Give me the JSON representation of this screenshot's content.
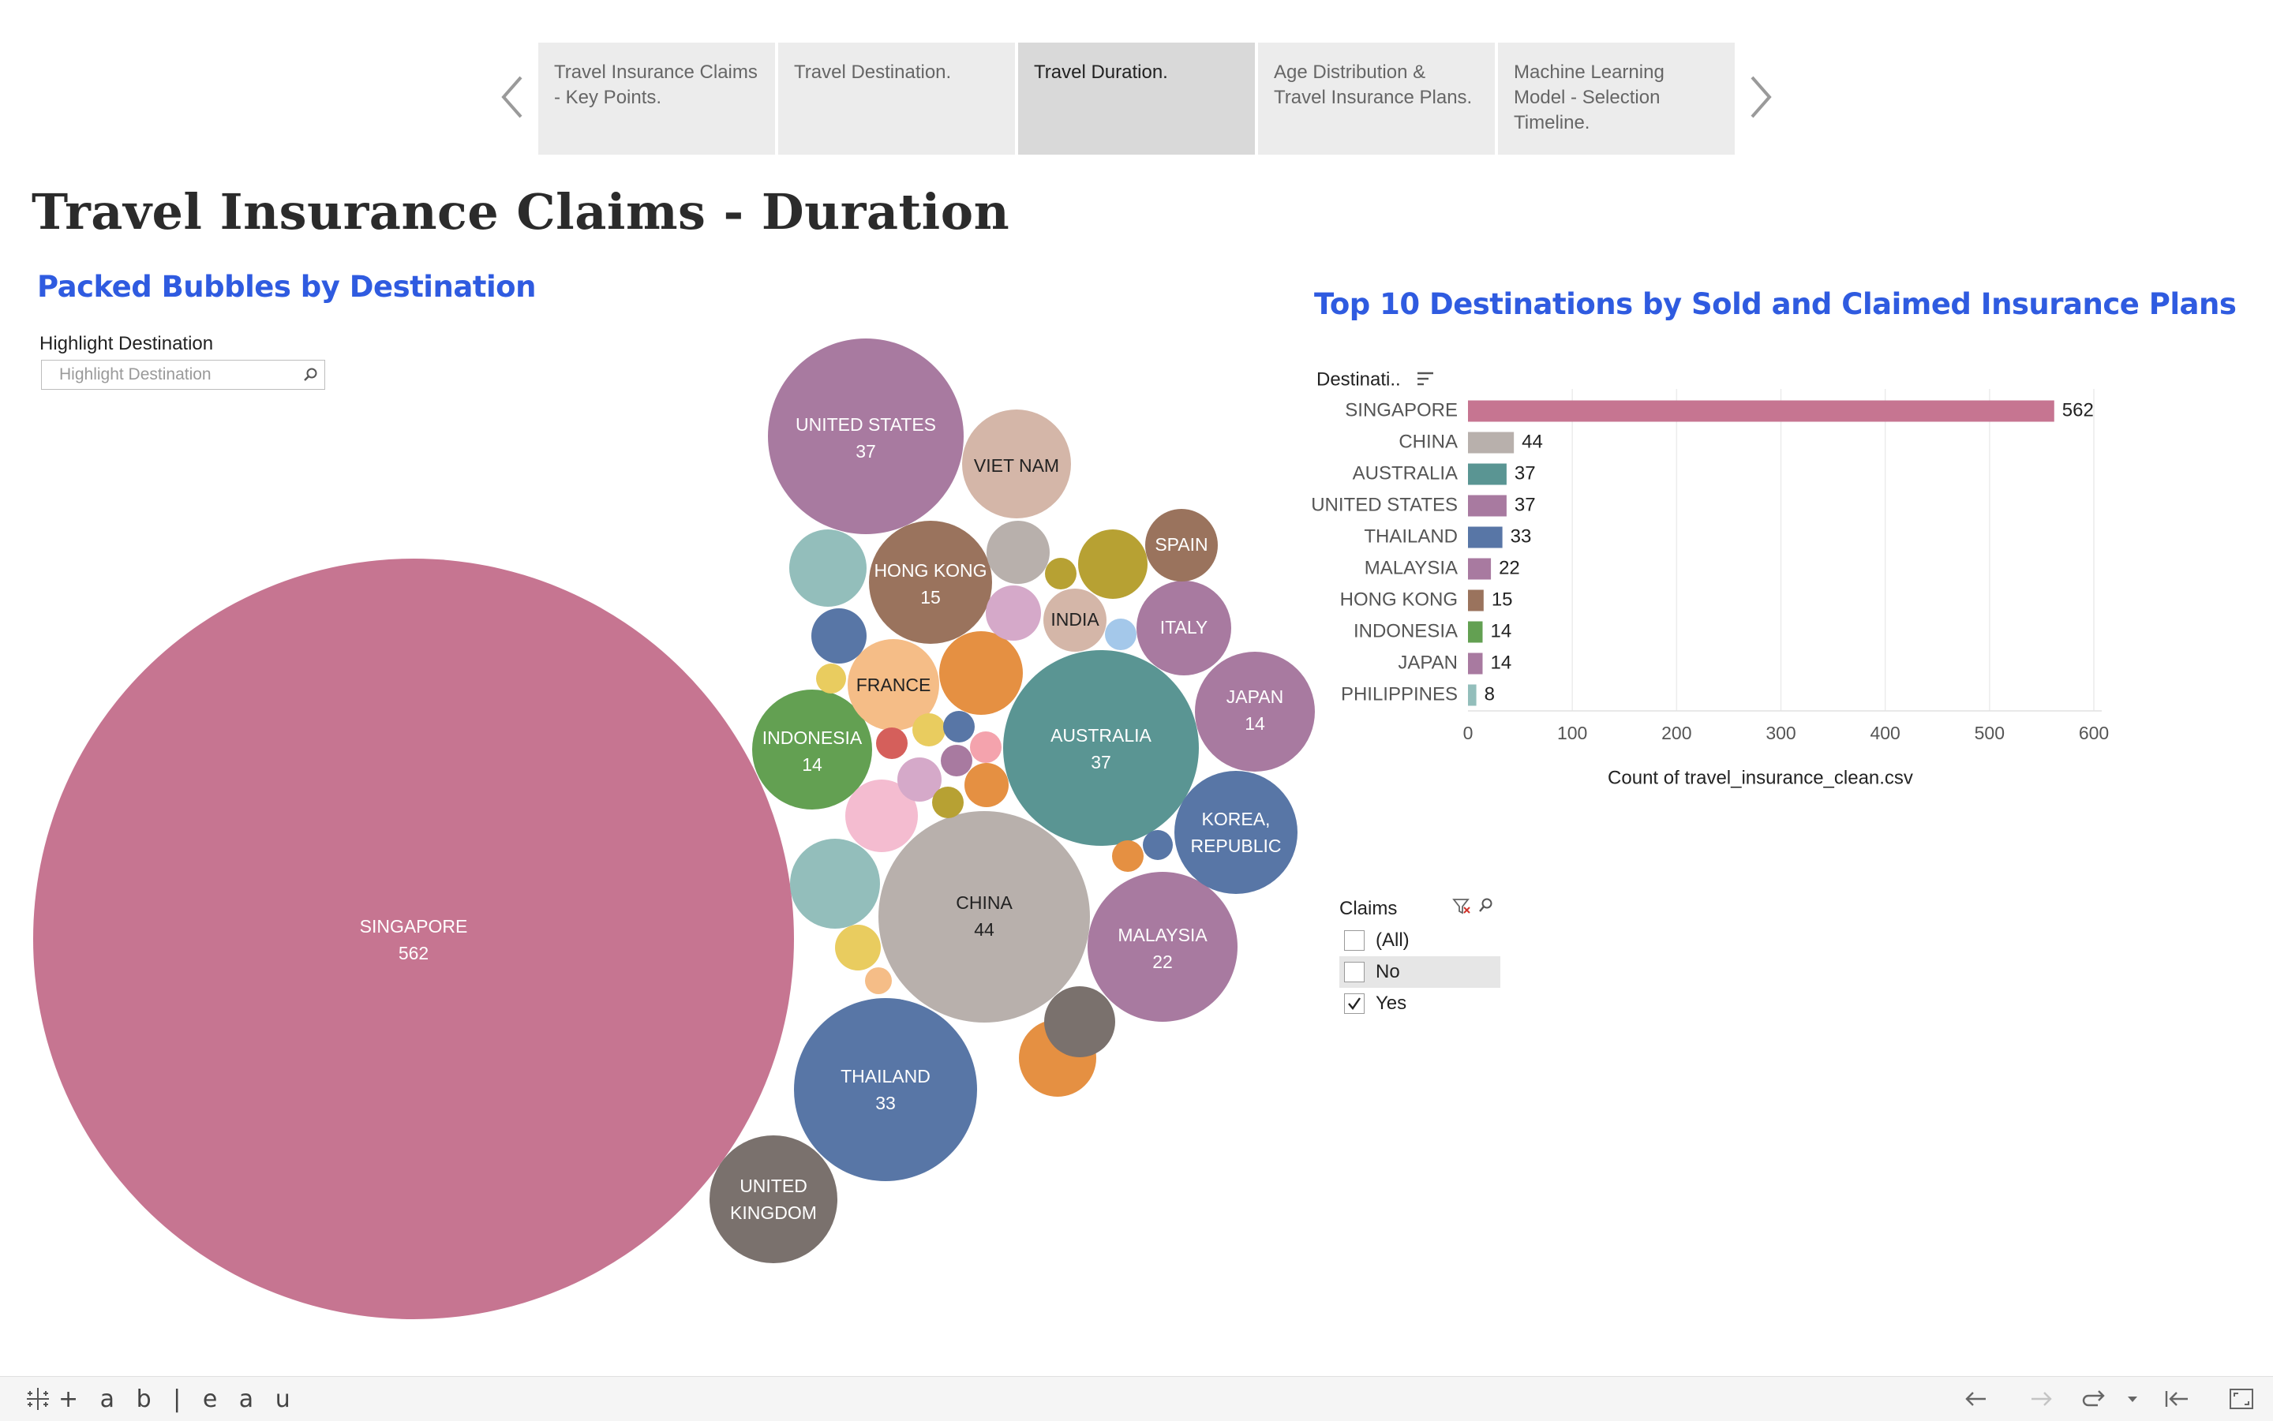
{
  "story_nav": {
    "points": [
      {
        "label": "Travel Insurance Claims - Key Points."
      },
      {
        "label": "Travel Destination."
      },
      {
        "label": "Travel Duration."
      },
      {
        "label": "Age Distribution & Travel Insurance Plans."
      },
      {
        "label": "Machine Learning Model - Selection Timeline."
      }
    ],
    "active_index": 2
  },
  "dashboard": {
    "title": "Travel Insurance Claims - Duration"
  },
  "bubble_section": {
    "title": "Packed Bubbles by Destination",
    "highlight_label": "Highlight Destination",
    "highlight_placeholder": "Highlight Destination"
  },
  "bar_section": {
    "title": "Top 10 Destinations by Sold and Claimed Insurance Plans"
  },
  "claims_filter": {
    "title": "Claims",
    "options": [
      {
        "label": "(All)",
        "checked": false
      },
      {
        "label": "No",
        "checked": false
      },
      {
        "label": "Yes",
        "checked": true
      }
    ]
  },
  "toolbar": {
    "logo_text": "+ a b | e a u"
  },
  "colors": {
    "accent_title": "#2f5be0",
    "singapore": "#c67591",
    "china": "#b8b0ac",
    "australia": "#5a9593",
    "united_states": "#a87aa0",
    "thailand": "#5876a6",
    "malaysia": "#a87aa0",
    "hong_kong": "#9a735d",
    "indonesia": "#63a052",
    "japan": "#a87aa0",
    "philippines": "#93bebb"
  },
  "chart_data": [
    {
      "type": "bubble",
      "title": "Packed Bubbles by Destination",
      "bubbles": [
        {
          "name": "SINGAPORE",
          "value": 562,
          "label": "562",
          "color": "#c67591"
        },
        {
          "name": "CHINA",
          "value": 44,
          "label": "44",
          "color": "#b8b0ac"
        },
        {
          "name": "AUSTRALIA",
          "value": 37,
          "label": "37",
          "color": "#5a9593"
        },
        {
          "name": "UNITED STATES",
          "value": 37,
          "label": "37",
          "color": "#a87aa0"
        },
        {
          "name": "THAILAND",
          "value": 33,
          "label": "33",
          "color": "#5876a6"
        },
        {
          "name": "MALAYSIA",
          "value": 22,
          "label": "22",
          "color": "#a87aa0"
        },
        {
          "name": "HONG KONG",
          "value": 15,
          "label": "15",
          "color": "#9a735d"
        },
        {
          "name": "INDONESIA",
          "value": 14,
          "label": "14",
          "color": "#63a052"
        },
        {
          "name": "JAPAN",
          "value": 14,
          "label": "14",
          "color": "#a87aa0"
        },
        {
          "name": "KOREA, REPUBLIC",
          "value": 12,
          "label": "",
          "color": "#5876a6"
        },
        {
          "name": "VIET NAM",
          "value": 10,
          "label": "",
          "color": "#d4b6a8"
        },
        {
          "name": "FRANCE",
          "value": 7,
          "label": "",
          "color": "#f5bd87"
        },
        {
          "name": "UNITED KINGDOM",
          "value": 7,
          "label": "",
          "color": "#7a716d"
        },
        {
          "name": "ITALY",
          "value": 7,
          "label": "",
          "color": "#a87aa0"
        },
        {
          "name": "SPAIN",
          "value": 4,
          "label": "",
          "color": "#9a735d"
        },
        {
          "name": "INDIA",
          "value": 3,
          "label": "",
          "color": "#d4b6a8"
        },
        {
          "name": "",
          "value": 6,
          "label": "",
          "color": "#e59042"
        },
        {
          "name": "",
          "value": 6,
          "label": "",
          "color": "#93bebb"
        },
        {
          "name": "",
          "value": 5,
          "label": "",
          "color": "#93bebb"
        },
        {
          "name": "",
          "value": 5,
          "label": "",
          "color": "#f4bcd0"
        },
        {
          "name": "",
          "value": 4,
          "label": "",
          "color": "#e59042"
        },
        {
          "name": "",
          "value": 3,
          "label": "",
          "color": "#7a716d"
        },
        {
          "name": "",
          "value": 4,
          "label": "",
          "color": "#b7a133"
        },
        {
          "name": "",
          "value": 3,
          "label": "",
          "color": "#b8b0ac"
        },
        {
          "name": "",
          "value": 2,
          "label": "",
          "color": "#d5a9c9"
        },
        {
          "name": "",
          "value": 2,
          "label": "",
          "color": "#5876a6"
        },
        {
          "name": "",
          "value": 1,
          "label": "",
          "color": "#e9cc5f"
        },
        {
          "name": "",
          "value": 1,
          "label": "",
          "color": "#f5bd87"
        },
        {
          "name": "",
          "value": 1,
          "label": "",
          "color": "#e59042"
        },
        {
          "name": "",
          "value": 1,
          "label": "",
          "color": "#5876a6"
        },
        {
          "name": "",
          "value": 1,
          "label": "",
          "color": "#e59042"
        },
        {
          "name": "",
          "value": 1,
          "label": "",
          "color": "#e9cc5f"
        },
        {
          "name": "",
          "value": 1,
          "label": "",
          "color": "#e9cc5f"
        },
        {
          "name": "",
          "value": 1,
          "label": "",
          "color": "#d5a9c9"
        },
        {
          "name": "",
          "value": 1,
          "label": "",
          "color": "#f4a3ad"
        },
        {
          "name": "",
          "value": 1,
          "label": "",
          "color": "#d55f5b"
        },
        {
          "name": "",
          "value": 1,
          "label": "",
          "color": "#a87aa0"
        },
        {
          "name": "",
          "value": 1,
          "label": "",
          "color": "#b7a133"
        },
        {
          "name": "",
          "value": 1,
          "label": "",
          "color": "#5876a6"
        },
        {
          "name": "",
          "value": 1,
          "label": "",
          "color": "#a4c8ea"
        },
        {
          "name": "",
          "value": 1,
          "label": "",
          "color": "#b7a133"
        }
      ]
    },
    {
      "type": "bar",
      "orientation": "horizontal",
      "title": "Top 10 Destinations by Sold and Claimed Insurance Plans",
      "ylabel": "Destinati..",
      "xlabel": "Count of travel_insurance_clean.csv",
      "categories": [
        "SINGAPORE",
        "CHINA",
        "AUSTRALIA",
        "UNITED STATES",
        "THAILAND",
        "MALAYSIA",
        "HONG KONG",
        "INDONESIA",
        "JAPAN",
        "PHILIPPINES"
      ],
      "values": [
        562,
        44,
        37,
        37,
        33,
        22,
        15,
        14,
        14,
        8
      ],
      "value_labels": [
        "562",
        "44",
        "37",
        "37",
        "33",
        "22",
        "15",
        "14",
        "14",
        "8"
      ],
      "colors": [
        "#c67591",
        "#b8b0ac",
        "#5a9593",
        "#a87aa0",
        "#5876a6",
        "#a87aa0",
        "#9a735d",
        "#63a052",
        "#a87aa0",
        "#93bebb"
      ],
      "xlim": [
        0,
        600
      ],
      "xticks": [
        0,
        100,
        200,
        300,
        400,
        500,
        600
      ],
      "xtick_labels": [
        "0",
        "100",
        "200",
        "300",
        "400",
        "500",
        "600"
      ],
      "grid": true
    }
  ]
}
